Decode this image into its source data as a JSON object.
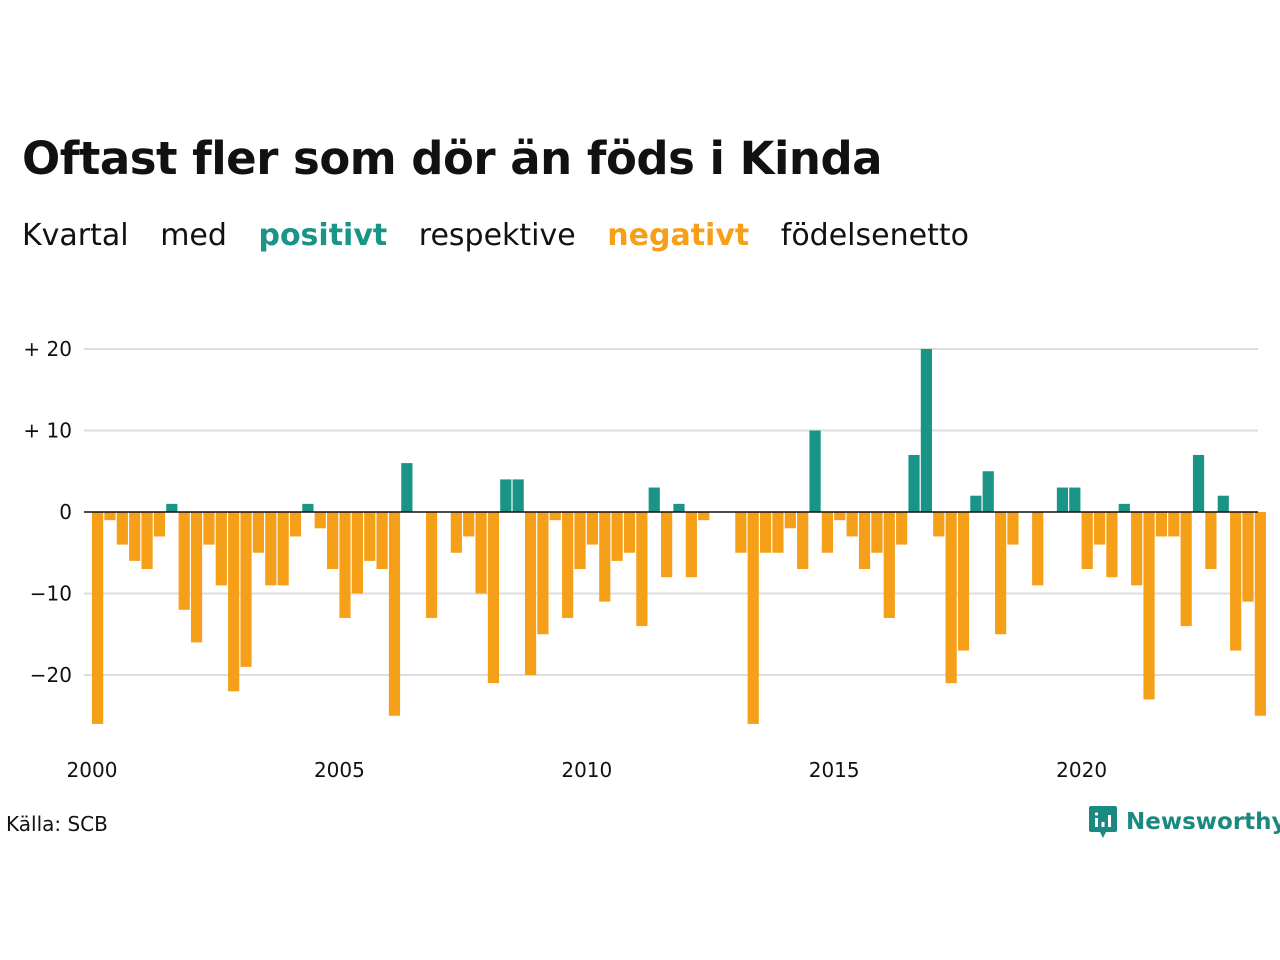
{
  "title": "Oftast fler som dör än föds i Kinda",
  "subtitle": {
    "w1": "Kvartal",
    "w2": "med",
    "positive_word": "positivt",
    "w3": "respektive",
    "negative_word": "negativt",
    "w4": "födelsenetto"
  },
  "colors": {
    "positive": "#1a9486",
    "negative": "#f6a01a",
    "grid": "#dddddd"
  },
  "source": "Källa: SCB",
  "brand": {
    "name": "Newsworthy",
    "icon": "newsworthy-logo-icon"
  },
  "chart_data": {
    "type": "bar",
    "x_start": "2000-Q1",
    "ylim": [
      -28,
      20
    ],
    "y_ticks": [
      {
        "value": 20,
        "label": "+ 20"
      },
      {
        "value": 10,
        "label": "+ 10"
      },
      {
        "value": 0,
        "label": "0"
      },
      {
        "value": -10,
        "label": "−10"
      },
      {
        "value": -20,
        "label": "−20"
      }
    ],
    "x_ticks": [
      {
        "index": 0,
        "label": "2000"
      },
      {
        "index": 20,
        "label": "2005"
      },
      {
        "index": 40,
        "label": "2010"
      },
      {
        "index": 60,
        "label": "2015"
      },
      {
        "index": 80,
        "label": "2020"
      }
    ],
    "values": [
      -26,
      -1,
      -4,
      -6,
      -7,
      -3,
      1,
      -12,
      -16,
      -4,
      -9,
      -22,
      -19,
      -5,
      -9,
      -9,
      -3,
      1,
      -2,
      -7,
      -13,
      -10,
      -6,
      -7,
      -25,
      6,
      0,
      -13,
      0,
      -5,
      -3,
      -10,
      -21,
      4,
      4,
      -20,
      -15,
      -1,
      -13,
      -7,
      -4,
      -11,
      -6,
      -5,
      -14,
      3,
      -8,
      1,
      -8,
      -1,
      0,
      0,
      -5,
      -26,
      -5,
      -5,
      -2,
      -7,
      10,
      -5,
      -1,
      -3,
      -7,
      -5,
      -13,
      -4,
      7,
      20,
      -3,
      -21,
      -17,
      2,
      5,
      -15,
      -4,
      0,
      -9,
      0,
      3,
      3,
      -7,
      -4,
      -8,
      1,
      -9,
      -23,
      -3,
      -3,
      -14,
      7,
      -7,
      2,
      -17,
      -11,
      -25
    ]
  }
}
